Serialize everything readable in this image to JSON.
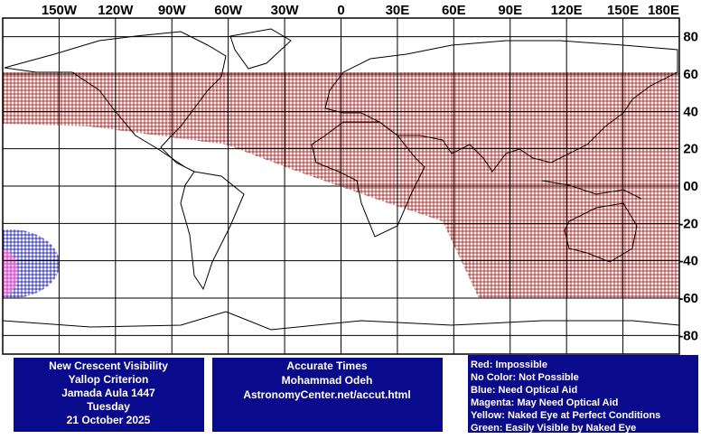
{
  "map": {
    "longitude_labels": [
      "150W",
      "120W",
      "90W",
      "60W",
      "30W",
      "0",
      "30E",
      "60E",
      "90E",
      "120E",
      "150E",
      "180E"
    ],
    "latitude_labels": [
      "80",
      "60",
      "40",
      "20",
      "00",
      "-20",
      "-40",
      "-60",
      "-80"
    ]
  },
  "info": {
    "lines": [
      "New Crescent Visibility",
      "Yallop Criterion",
      "Jamada Aula 1447",
      "Tuesday",
      "21 October 2025"
    ]
  },
  "credit": {
    "lines": [
      "Accurate Times",
      "Mohammad Odeh",
      "AstronomyCenter.net/accut.html"
    ]
  },
  "legend": {
    "items": [
      "Red: Impossible",
      "No Color: Not Possible",
      "Blue: Need Optical Aid",
      "Magenta: May Need Optical Aid",
      "Yellow: Naked Eye at Perfect Conditions",
      "Green: Easily Visible by Naked Eye"
    ]
  }
}
